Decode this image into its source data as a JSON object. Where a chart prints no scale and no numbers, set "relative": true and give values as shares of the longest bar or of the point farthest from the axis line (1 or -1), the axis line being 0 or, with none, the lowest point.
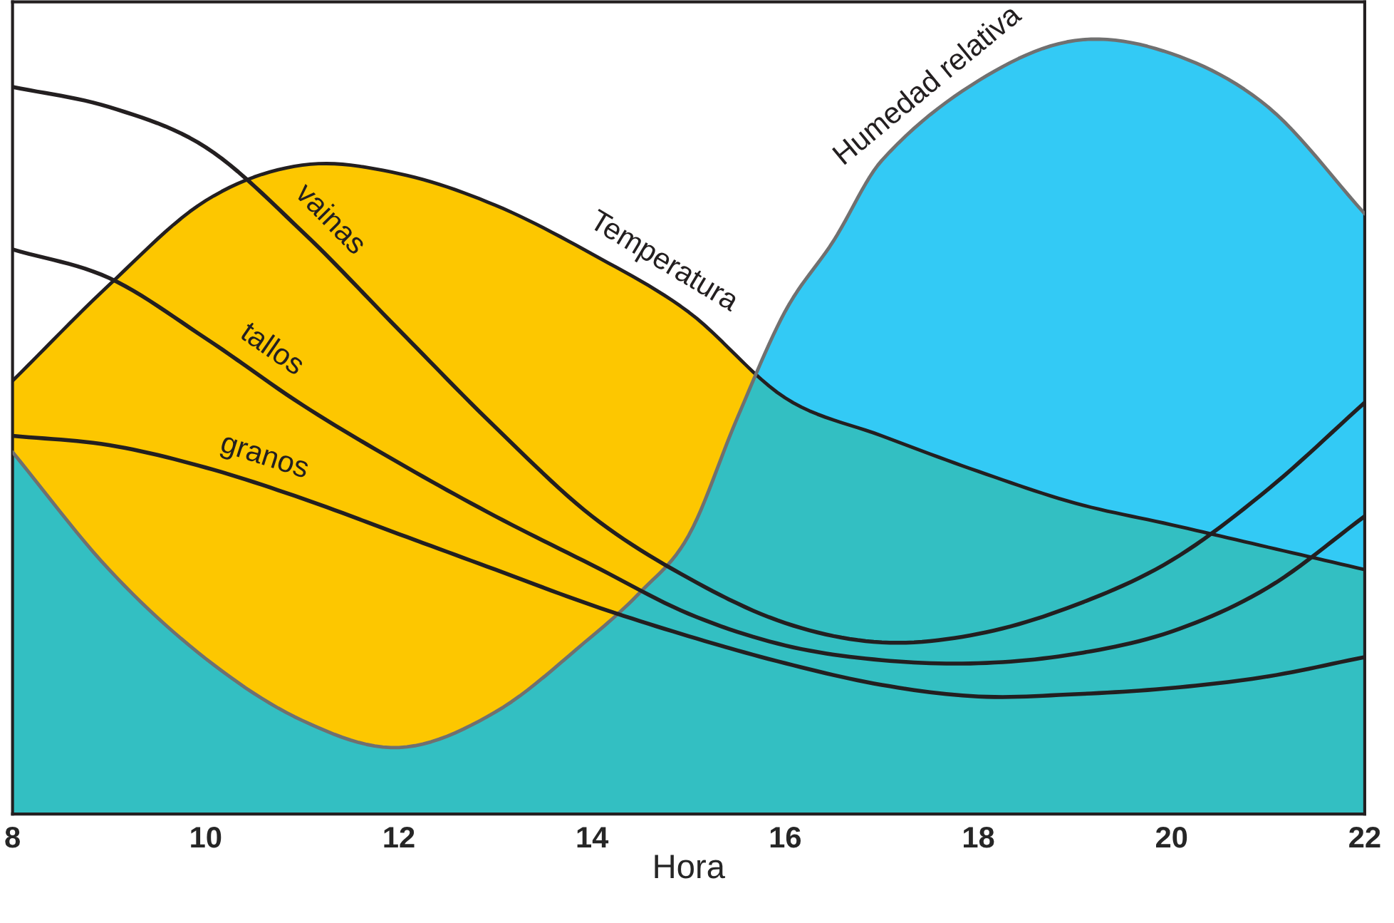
{
  "chart_data": {
    "type": "line",
    "relative": true,
    "xlabel": "Hora",
    "xlim": [
      8,
      22
    ],
    "xticks": [
      8,
      10,
      12,
      14,
      16,
      18,
      20,
      22
    ],
    "grid": false,
    "legend": false,
    "x": [
      8,
      9,
      10,
      11,
      12,
      13,
      14,
      15,
      16,
      17,
      18,
      19,
      20,
      21,
      22
    ],
    "series": [
      {
        "name": "Temperatura",
        "type": "area",
        "color": "#fdc700",
        "values": [
          0.56,
          0.684,
          0.793,
          0.839,
          0.828,
          0.787,
          0.724,
          0.649,
          0.538,
          0.489,
          0.443,
          0.402,
          0.374,
          0.345,
          0.316
        ]
      },
      {
        "name": "Humedad relativa",
        "type": "area",
        "color": "#00bdf2",
        "x": [
          8,
          9,
          10,
          11,
          12,
          13,
          14,
          14.5,
          15,
          15.5,
          16,
          16.5,
          17,
          18,
          19,
          20,
          21,
          22
        ],
        "values": [
          0.468,
          0.316,
          0.201,
          0.121,
          0.086,
          0.132,
          0.23,
          0.287,
          0.36,
          0.511,
          0.65,
          0.741,
          0.845,
          0.948,
          1,
          0.983,
          0.914,
          0.776
        ]
      },
      {
        "name": "vainas",
        "color": "#231f20",
        "values": [
          0.94,
          0.914,
          0.862,
          0.753,
          0.626,
          0.5,
          0.385,
          0.305,
          0.247,
          0.222,
          0.233,
          0.27,
          0.328,
          0.42,
          0.532
        ]
      },
      {
        "name": "tallos",
        "color": "#231f20",
        "values": [
          0.73,
          0.693,
          0.615,
          0.529,
          0.454,
          0.385,
          0.322,
          0.259,
          0.218,
          0.199,
          0.195,
          0.207,
          0.236,
          0.293,
          0.385
        ]
      },
      {
        "name": "granos",
        "color": "#231f20",
        "values": [
          0.489,
          0.477,
          0.448,
          0.408,
          0.362,
          0.316,
          0.27,
          0.23,
          0.195,
          0.167,
          0.152,
          0.155,
          0.163,
          0.178,
          0.203
        ]
      }
    ]
  }
}
